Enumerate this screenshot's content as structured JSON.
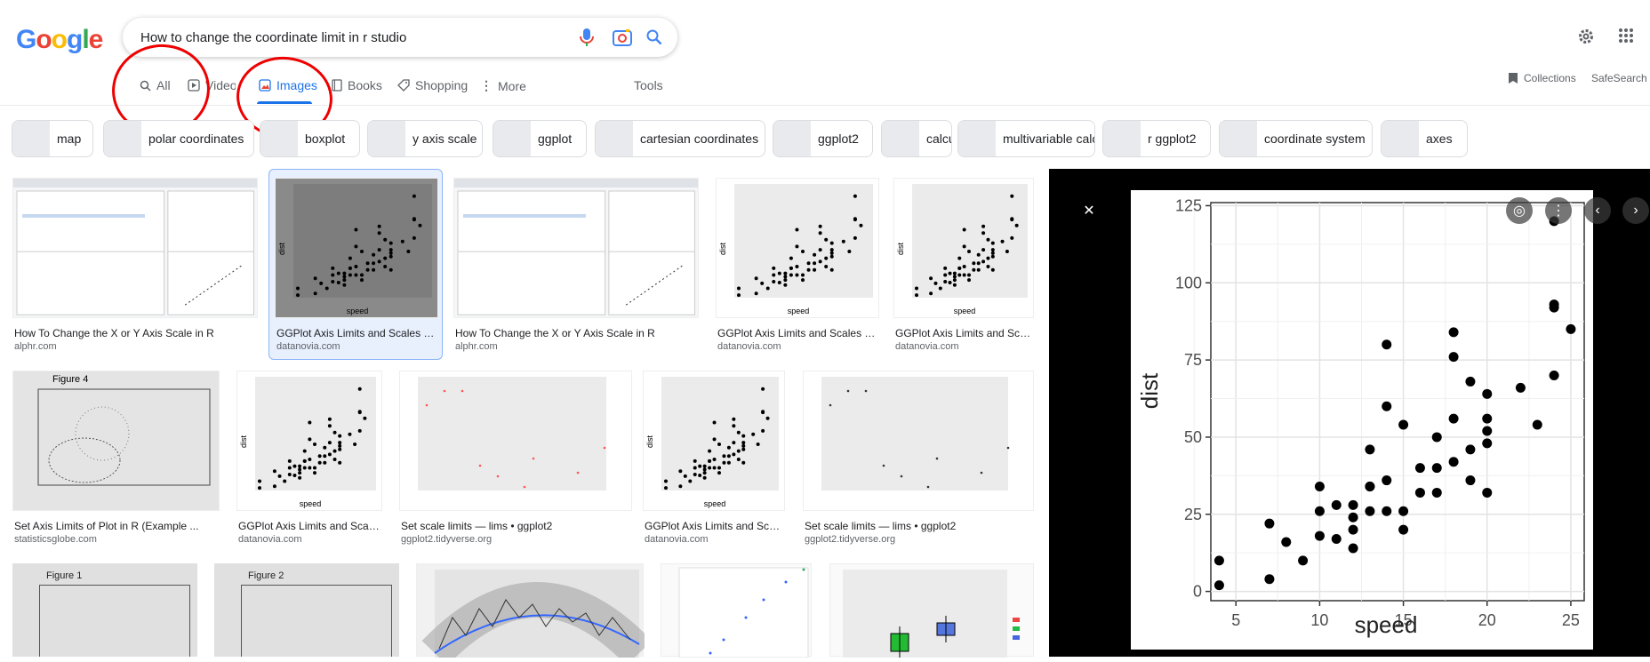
{
  "logo": {
    "letters": [
      "G",
      "o",
      "o",
      "g",
      "l",
      "e"
    ],
    "colors": [
      "#4285f4",
      "#ea4335",
      "#fbbc05",
      "#4285f4",
      "#34a853",
      "#ea4335"
    ]
  },
  "search": {
    "query": "How to change the coordinate limit in r studio"
  },
  "tabs": [
    {
      "label": "All",
      "icon": "search-icon"
    },
    {
      "label": "Videos",
      "icon": "play-icon"
    },
    {
      "label": "Images",
      "icon": "image-icon",
      "active": true
    },
    {
      "label": "Books",
      "icon": "book-icon"
    },
    {
      "label": "Shopping",
      "icon": "tag-icon"
    },
    {
      "label": "More",
      "icon": "more-vert-icon"
    }
  ],
  "tools": "Tools",
  "collections": "Collections",
  "safesearch": "SafeSearch o",
  "chips": [
    "map",
    "polar coordinates",
    "boxplot",
    "y axis scale",
    "ggplot",
    "cartesian coordinates",
    "ggplot2",
    "calculus",
    "multivariable calculus",
    "r ggplot2",
    "coordinate system",
    "axes"
  ],
  "results": [
    {
      "title": "How To Change the X or Y Axis Scale in R",
      "source": "alphr.com"
    },
    {
      "title": "GGPlot Axis Limits and Scales : I...",
      "source": "datanovia.com"
    },
    {
      "title": "How To Change the X or Y Axis Scale in R",
      "source": "alphr.com"
    },
    {
      "title": "GGPlot Axis Limits and Scales : I...",
      "source": "datanovia.com"
    },
    {
      "title": "GGPlot Axis Limits and Scal...",
      "source": "datanovia.com"
    },
    {
      "title": "Set Axis Limits of Plot in R (Example ...",
      "source": "statisticsglobe.com"
    },
    {
      "title": "GGPlot Axis Limits and Scale...",
      "source": "datanovia.com"
    },
    {
      "title": "Set scale limits — lims • ggplot2",
      "source": "ggplot2.tidyverse.org"
    },
    {
      "title": "GGPlot Axis Limits and Scale...",
      "source": "datanovia.com"
    },
    {
      "title": "Set scale limits — lims • ggplot2",
      "source": "ggplot2.tidyverse.org"
    }
  ],
  "thumb_labels": {
    "fig4": "Figure 4",
    "fig1": "Figure 1",
    "fig2": "Figure 2",
    "speed": "speed",
    "dist": "dist"
  },
  "chart_data": {
    "type": "scatter",
    "xlabel": "speed",
    "ylabel": "dist",
    "xlim": [
      3.5,
      25.8
    ],
    "ylim": [
      -3,
      126
    ],
    "xticks": [
      5,
      10,
      15,
      20,
      25
    ],
    "yticks": [
      0,
      25,
      50,
      75,
      100,
      125
    ],
    "grid": true,
    "x": [
      4,
      4,
      7,
      7,
      8,
      9,
      10,
      10,
      10,
      11,
      11,
      12,
      12,
      12,
      12,
      13,
      13,
      13,
      13,
      14,
      14,
      14,
      14,
      15,
      15,
      15,
      16,
      16,
      17,
      17,
      17,
      18,
      18,
      18,
      18,
      19,
      19,
      19,
      20,
      20,
      20,
      20,
      20,
      22,
      23,
      24,
      24,
      24,
      24,
      25
    ],
    "y": [
      2,
      10,
      4,
      22,
      16,
      10,
      18,
      26,
      34,
      17,
      28,
      14,
      20,
      24,
      28,
      26,
      34,
      34,
      46,
      26,
      36,
      60,
      80,
      20,
      26,
      54,
      32,
      40,
      32,
      40,
      50,
      42,
      56,
      76,
      84,
      36,
      46,
      68,
      32,
      48,
      52,
      56,
      64,
      66,
      54,
      70,
      92,
      93,
      120,
      85
    ]
  }
}
